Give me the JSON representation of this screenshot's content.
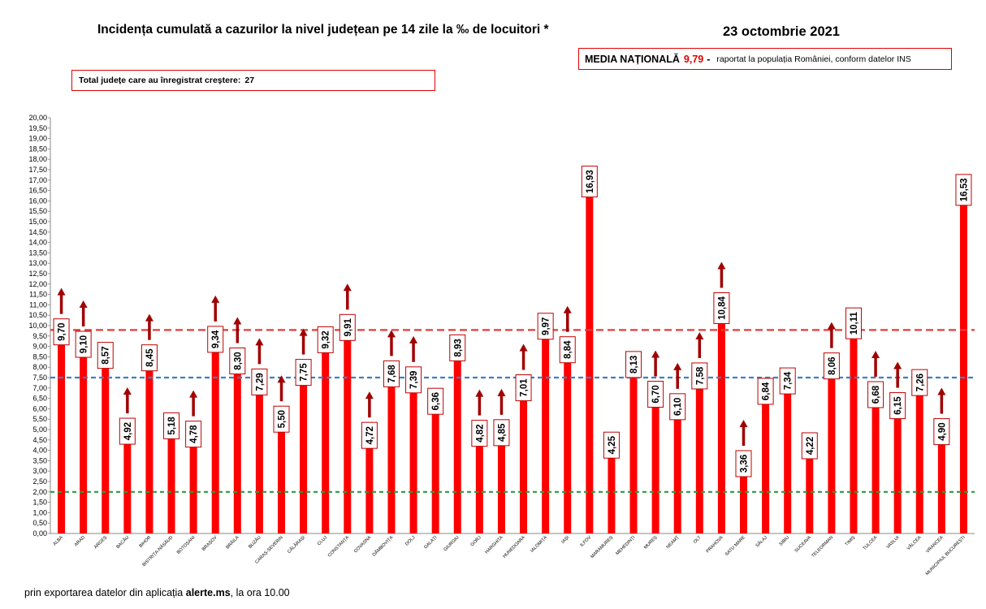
{
  "header": {
    "title": "Incidența cumulată a cazurilor la nivel județean pe 14 zile la ‰ de locuitori *",
    "date": "23 octombrie 2021"
  },
  "national_box": {
    "label": "MEDIA NAȚIONALĂ",
    "value": "9,79",
    "dash": "-",
    "note": "raportat la populația României, conform datelor INS"
  },
  "counties_box": {
    "label": "Total județe care au înregistrat creștere:",
    "value": "27"
  },
  "footer": {
    "prefix": "prin exportarea datelor din aplicația",
    "app": "alerte.ms",
    "suffix": ", la ora 10.00"
  },
  "colors": {
    "bar": "#ff0000",
    "arrow": "#a00000",
    "label_border": "#c00000",
    "line_national": "#e53a3a",
    "line_blue": "#3f7fbf",
    "line_green": "#2e9a3a"
  },
  "chart_data": {
    "type": "bar",
    "ylim": [
      0,
      20
    ],
    "y_ticks": [
      "0,00",
      "0,50",
      "1,00",
      "1,50",
      "2,00",
      "2,50",
      "3,00",
      "3,50",
      "4,00",
      "4,50",
      "5,00",
      "5,50",
      "6,00",
      "6,50",
      "7,00",
      "7,50",
      "8,00",
      "8,50",
      "9,00",
      "9,50",
      "10,00",
      "10,50",
      "11,00",
      "11,50",
      "12,00",
      "12,50",
      "13,00",
      "13,50",
      "14,00",
      "14,50",
      "15,00",
      "15,50",
      "16,00",
      "16,50",
      "17,00",
      "17,50",
      "18,00",
      "18,50",
      "19,00",
      "19,50",
      "20,00"
    ],
    "grid": false,
    "categories": [
      "ALBA",
      "ARAD",
      "ARGEȘ",
      "BACĂU",
      "BIHOR",
      "BISTRIȚA-NĂSĂUD",
      "BOTOȘANI",
      "BRAȘOV",
      "BRĂILA",
      "BUZĂU",
      "CARAȘ-SEVERIN",
      "CĂLĂRAȘI",
      "CLUJ",
      "CONSTANȚA",
      "COVASNA",
      "DÂMBOVIȚA",
      "DOLJ",
      "GALAȚI",
      "GIURGIU",
      "GORJ",
      "HARGHITA",
      "HUNEDOARA",
      "IALOMIȚA",
      "IAȘI",
      "ILFOV",
      "MARAMUREȘ",
      "MEHEDINȚI",
      "MUREȘ",
      "NEAMȚ",
      "OLT",
      "PRAHOVA",
      "SATU MARE",
      "SĂLAJ",
      "SIBIU",
      "SUCEAVA",
      "TELEORMAN",
      "TIMIȘ",
      "TULCEA",
      "VASLUI",
      "VÂLCEA",
      "VRANCEA",
      "MUNICIPIUL BUCUREȘTI"
    ],
    "values": [
      9.7,
      9.1,
      8.57,
      4.92,
      8.45,
      5.18,
      4.78,
      9.34,
      8.3,
      7.29,
      5.5,
      7.75,
      9.32,
      9.91,
      4.72,
      7.68,
      7.39,
      6.36,
      8.93,
      4.82,
      4.85,
      7.01,
      9.97,
      8.84,
      16.93,
      4.25,
      8.13,
      6.7,
      6.1,
      7.58,
      10.84,
      3.36,
      6.84,
      7.34,
      4.22,
      8.06,
      10.11,
      6.68,
      6.15,
      7.26,
      4.9,
      16.53
    ],
    "labels": [
      "9,70",
      "9,10",
      "8,57",
      "4,92",
      "8,45",
      "5,18",
      "4,78",
      "9,34",
      "8,30",
      "7,29",
      "5,50",
      "7,75",
      "9,32",
      "9,91",
      "4,72",
      "7,68",
      "7,39",
      "6,36",
      "8,93",
      "4,82",
      "4,85",
      "7,01",
      "9,97",
      "8,84",
      "16,93",
      "4,25",
      "8,13",
      "6,70",
      "6,10",
      "7,58",
      "10,84",
      "3,36",
      "6,84",
      "7,34",
      "4,22",
      "8,06",
      "10,11",
      "6,68",
      "6,15",
      "7,26",
      "4,90",
      "16,53"
    ],
    "increase": [
      true,
      true,
      false,
      true,
      true,
      false,
      true,
      true,
      true,
      true,
      true,
      true,
      false,
      true,
      true,
      true,
      true,
      false,
      false,
      true,
      true,
      true,
      false,
      true,
      false,
      false,
      false,
      true,
      true,
      true,
      true,
      true,
      false,
      false,
      false,
      true,
      false,
      true,
      true,
      false,
      true,
      false
    ],
    "reference_lines": [
      {
        "value": 9.79,
        "color": "#e53a3a"
      },
      {
        "value": 7.5,
        "color": "#3f7fbf"
      },
      {
        "value": 2.0,
        "color": "#2e9a3a"
      }
    ]
  }
}
